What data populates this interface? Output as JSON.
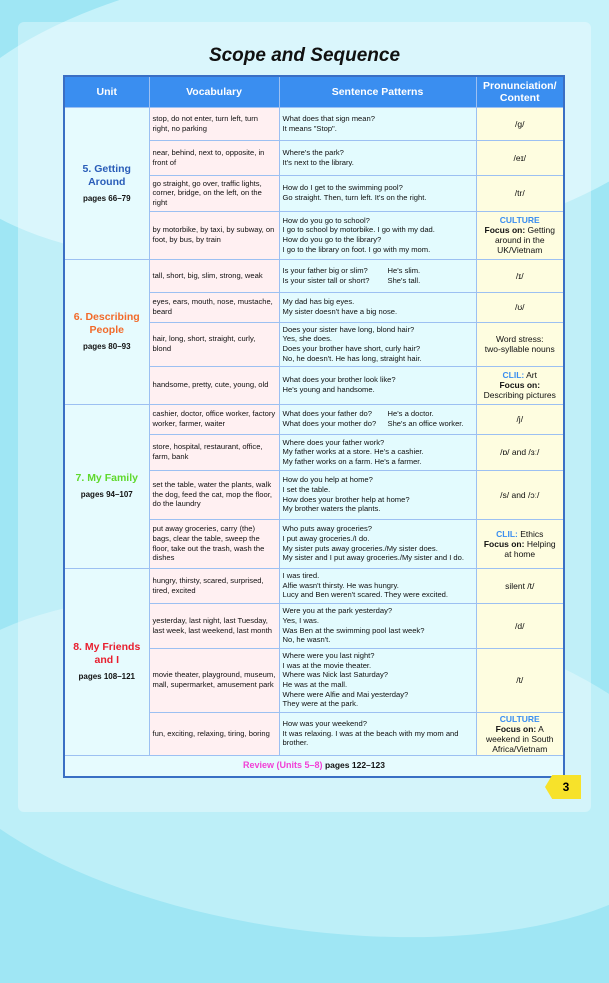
{
  "title": "Scope and Sequence",
  "headers": [
    "Unit",
    "Vocabulary",
    "Sentence Patterns",
    "Pronunciation/ Content"
  ],
  "colors": {
    "unit5": "#2a5db8",
    "unit6": "#f26a2a",
    "unit7": "#5fd92c",
    "unit8": "#e81e2e",
    "header": "#3a8ef0",
    "tag": "#3a8ef0",
    "review": "#f23fd6"
  },
  "units": [
    {
      "name": "5. Getting Around",
      "pages": "pages 66–79",
      "color": "#2a5db8",
      "rows": [
        {
          "vocab": "stop, do not enter, turn left, turn right, no parking",
          "sentences": [
            "What does that sign mean?",
            "It means \"Stop\"."
          ],
          "pron": {
            "lines": [
              "/g/"
            ]
          }
        },
        {
          "vocab": "near, behind, next to, opposite, in front of",
          "sentences": [
            "Where's the park?",
            "It's next to the library."
          ],
          "pron": {
            "lines": [
              "/eɪ/"
            ]
          }
        },
        {
          "vocab": "go straight, go over, traffic lights, corner, bridge, on the left, on the right",
          "sentences": [
            "How do I get to the swimming pool?",
            "Go straight. Then, turn left. It's on the right."
          ],
          "pron": {
            "lines": [
              "/tr/"
            ]
          }
        },
        {
          "vocab": "by motorbike, by taxi, by subway, on foot, by bus, by train",
          "sentences": [
            "How do you go to school?",
            "I go to school by motorbike. I go with my dad.",
            "How do you go to the library?",
            "I go to the library on foot. I go with my mom."
          ],
          "pron": {
            "tag": "CULTURE",
            "focus": "Focus on:",
            "lines": [
              "Getting around in the UK/Vietnam"
            ]
          }
        }
      ]
    },
    {
      "name": "6. Describing People",
      "pages": "pages 80–93",
      "color": "#f26a2a",
      "rows": [
        {
          "vocab": "tall, short, big, slim, strong, weak",
          "sentences": [
            [
              "Is your father big or slim?",
              "He's slim."
            ],
            [
              "Is your sister tall or short?",
              "She's tall."
            ]
          ],
          "pron": {
            "lines": [
              "/ɪ/"
            ]
          }
        },
        {
          "vocab": "eyes, ears, mouth, nose, mustache, beard",
          "sentences": [
            "My dad has big eyes.",
            "My sister doesn't have a big nose."
          ],
          "pron": {
            "lines": [
              "/ʊ/"
            ]
          }
        },
        {
          "vocab": "hair, long, short, straight, curly, blond",
          "sentences": [
            "Does your sister have long, blond hair?",
            "Yes, she does.",
            "Does your brother have short, curly hair?",
            "No, he doesn't. He has long, straight hair."
          ],
          "pron": {
            "lines": [
              "Word stress:",
              "two-syllable nouns"
            ]
          }
        },
        {
          "vocab": "handsome, pretty, cute, young, old",
          "sentences": [
            "What does your brother look like?",
            "He's young and handsome."
          ],
          "pron": {
            "tag": "CLIL:",
            "tagrest": " Art",
            "focus": "Focus on:",
            "lines": [
              "Describing pictures"
            ]
          }
        }
      ]
    },
    {
      "name": "7. My Family",
      "pages": "pages 94–107",
      "color": "#5fd92c",
      "rows": [
        {
          "vocab": "cashier, doctor, office worker, factory worker, farmer, waiter",
          "sentences": [
            [
              "What does your father do?",
              "He's a doctor."
            ],
            [
              "What does your mother do?",
              "She's an office worker."
            ]
          ],
          "pron": {
            "lines": [
              "/j/"
            ]
          }
        },
        {
          "vocab": "store, hospital, restaurant, office, farm, bank",
          "sentences": [
            "Where does your father work?",
            "My father works at a store. He's a cashier.",
            "My father works on a farm. He's a farmer."
          ],
          "pron": {
            "lines": [
              "/ɒ/ and /ɜː/"
            ]
          }
        },
        {
          "vocab": "set the table, water the plants, walk the dog, feed the cat, mop the floor, do the laundry",
          "sentences": [
            "How do you help at home?",
            "I set the table.",
            "How does your brother help at home?",
            "My brother waters the plants."
          ],
          "pron": {
            "lines": [
              "/s/ and /ɔː/"
            ]
          }
        },
        {
          "vocab": "put away groceries, carry (the) bags, clear the table, sweep the floor, take out the trash, wash the dishes",
          "sentences": [
            "Who puts away groceries?",
            "I put away groceries./I do.",
            "My sister puts away groceries./My sister does.",
            "My sister and I put away groceries./My sister and I do."
          ],
          "pron": {
            "tag": "CLIL:",
            "tagrest": " Ethics",
            "focus": "Focus on:",
            "lines": [
              "Helping at home"
            ]
          }
        }
      ]
    },
    {
      "name": "8. My Friends and I",
      "pages": "pages 108–121",
      "color": "#e81e2e",
      "rows": [
        {
          "vocab": "hungry, thirsty, scared, surprised, tired, excited",
          "sentences": [
            "I was tired.",
            "Alfie wasn't thirsty. He was hungry.",
            "Lucy and Ben weren't scared. They were excited."
          ],
          "pron": {
            "lines": [
              "silent /t/"
            ]
          }
        },
        {
          "vocab": "yesterday, last night, last Tuesday, last week, last weekend, last month",
          "sentences": [
            "Were you at the park yesterday?",
            "Yes, I was.",
            "Was Ben at the swimming pool last week?",
            "No, he wasn't."
          ],
          "pron": {
            "lines": [
              "/d/"
            ]
          }
        },
        {
          "vocab": "movie theater, playground, museum, mall, supermarket, amusement park",
          "sentences": [
            "Where were you last night?",
            "I was at the movie theater.",
            "Where was Nick last Saturday?",
            "He was at the mall.",
            "Where were Alfie and Mai yesterday?",
            "They were at the park."
          ],
          "pron": {
            "lines": [
              "/t/"
            ]
          }
        },
        {
          "vocab": "fun, exciting, relaxing, tiring, boring",
          "sentences": [
            "How was your weekend?",
            "It was relaxing. I was at the beach with my mom and brother."
          ],
          "pron": {
            "tag": "CULTURE",
            "focus": "Focus on:",
            "lines": [
              "A weekend in South Africa/Vietnam"
            ]
          }
        }
      ]
    }
  ],
  "review": {
    "label": "Review (Units 5–8)",
    "pages": "pages 122–123"
  },
  "page_number": "3"
}
